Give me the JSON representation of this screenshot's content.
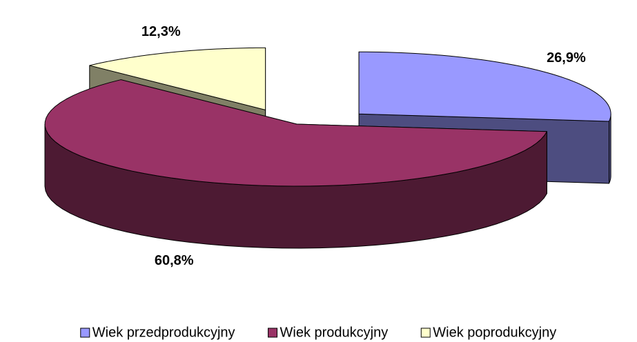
{
  "chart_data": {
    "type": "pie",
    "categories": [
      "Wiek przedprodukcyjny",
      "Wiek produkcyjny",
      "Wiek poprodukcyjny"
    ],
    "values": [
      26.9,
      60.8,
      12.3
    ],
    "value_labels": [
      "26,9%",
      "60,8%",
      "12,3%"
    ],
    "colors": [
      "#9999ff",
      "#993366",
      "#ffffcc"
    ],
    "side_colors": [
      "#4d4d80",
      "#4d1a33",
      "#808066"
    ]
  }
}
